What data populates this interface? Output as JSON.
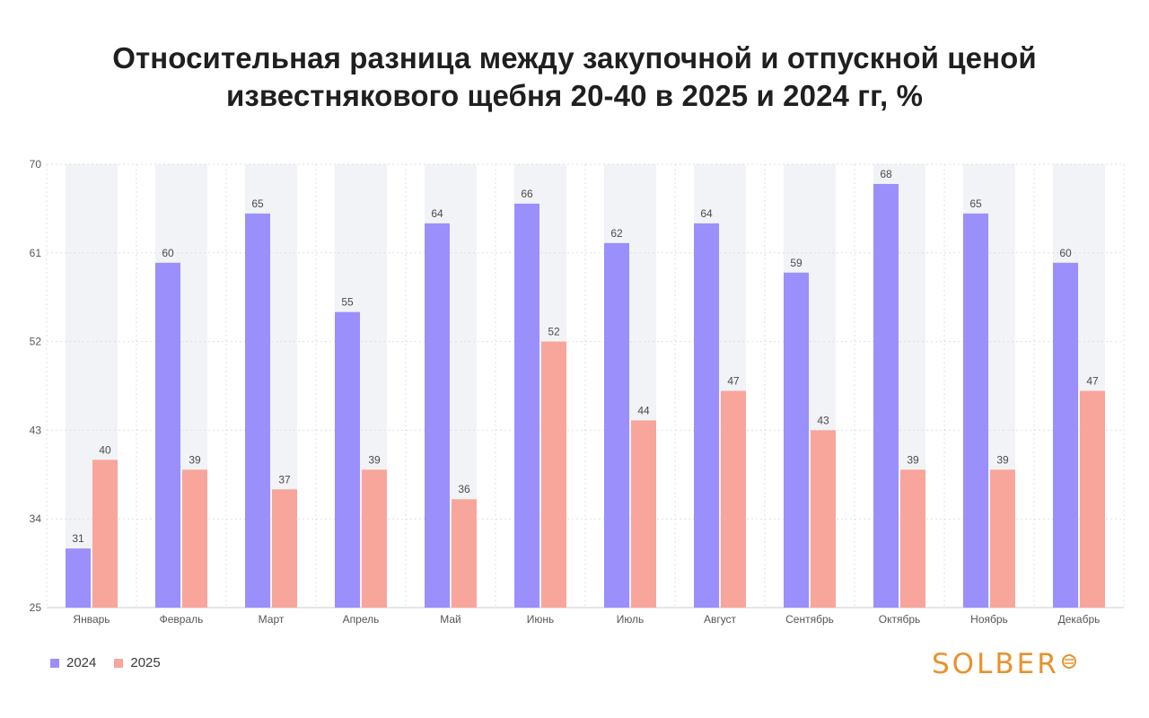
{
  "title_lines": [
    "Относительная разница между закупочной и отпускной ценой",
    "известнякового щебня 20-40 в 2025 и 2024 гг, %"
  ],
  "logo_text": "SOLBER",
  "colors": {
    "series_2024": "#9b8ffb",
    "series_2025": "#f8a59b",
    "background_band": "#f1f3f7",
    "grid": "#dde0e6",
    "axis_text": "#555555"
  },
  "chart_data": {
    "type": "bar",
    "title": "Относительная разница между закупочной и отпускной ценой известнякового щебня 20-40 в 2025 и 2024 гг, %",
    "categories": [
      "Январь",
      "Февраль",
      "Март",
      "Апрель",
      "Май",
      "Июнь",
      "Июль",
      "Август",
      "Сентябрь",
      "Октябрь",
      "Ноябрь",
      "Декабрь"
    ],
    "series": [
      {
        "name": "2024",
        "values": [
          31,
          60,
          65,
          55,
          64,
          66,
          62,
          64,
          59,
          68,
          65,
          60
        ]
      },
      {
        "name": "2025",
        "values": [
          40,
          39,
          37,
          39,
          36,
          52,
          44,
          47,
          43,
          39,
          39,
          47
        ]
      }
    ],
    "ylim": [
      25,
      70
    ],
    "yticks": [
      25,
      34,
      43,
      52,
      61,
      70
    ],
    "grid": true,
    "legend": "bottom-left",
    "data_labels": true
  }
}
